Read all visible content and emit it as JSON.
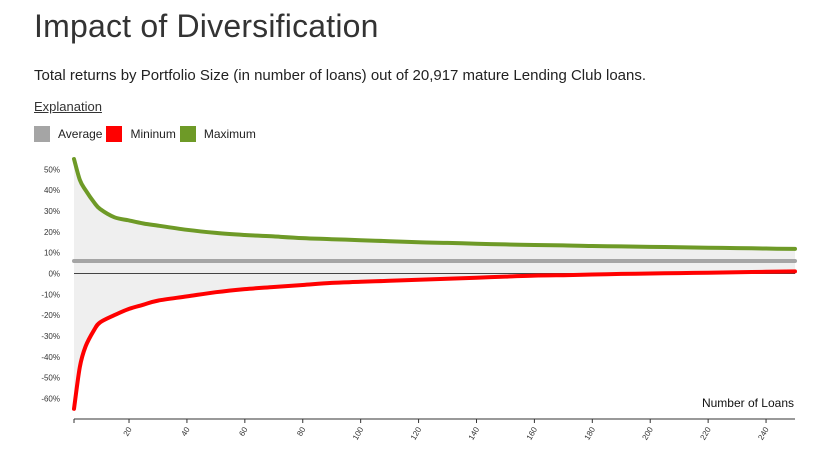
{
  "header": {
    "title": "Impact of Diversification",
    "subtitle": "Total returns by Portfolio Size (in number of loans) out of 20,917 mature Lending Club loans.",
    "explanation_link": "Explanation"
  },
  "legend": [
    {
      "label": "Average",
      "color": "#a5a5a5"
    },
    {
      "label": "Mininum",
      "color": "#ff0000"
    },
    {
      "label": "Maximum",
      "color": "#6e9a27"
    }
  ],
  "colors": {
    "average": "#a5a5a5",
    "minimum": "#ff0000",
    "maximum": "#6e9a27",
    "band_fill": "#efefef",
    "zero_line": "#444444"
  },
  "chart_data": {
    "type": "line",
    "xlabel": "Number of Loans",
    "ylabel": "",
    "title": "",
    "xlim": [
      1,
      250
    ],
    "ylim": [
      -67,
      55
    ],
    "x_ticks": [
      20,
      40,
      60,
      80,
      100,
      120,
      140,
      160,
      180,
      200,
      220,
      240
    ],
    "x_tick_labels": [
      "20",
      "40",
      "60",
      "80",
      "100",
      "120",
      "140",
      "160",
      "180",
      "200",
      "220",
      "240"
    ],
    "y_ticks": [
      50,
      40,
      30,
      20,
      10,
      0,
      -10,
      -20,
      -30,
      -40,
      -50,
      -60
    ],
    "y_tick_labels": [
      "50%",
      "40%",
      "30%",
      "20%",
      "10%",
      "0%",
      "-10%",
      "-20%",
      "-30%",
      "-40%",
      "-50%",
      "-60%"
    ],
    "x": [
      1,
      3,
      5,
      8,
      10,
      15,
      20,
      25,
      30,
      40,
      50,
      60,
      70,
      80,
      90,
      100,
      110,
      120,
      130,
      140,
      150,
      160,
      170,
      180,
      190,
      200,
      210,
      220,
      230,
      240,
      250
    ],
    "series": [
      {
        "name": "Average",
        "values": [
          6,
          6,
          6,
          6,
          6,
          6,
          6,
          6,
          6,
          6,
          6,
          6,
          6,
          6,
          6,
          6,
          6,
          6,
          6,
          6,
          6,
          6,
          6,
          6,
          6,
          6,
          6,
          6,
          6,
          6,
          6
        ]
      },
      {
        "name": "Mininum",
        "values": [
          -65,
          -45,
          -35,
          -27,
          -23.5,
          -20,
          -17,
          -15,
          -13,
          -11,
          -9,
          -7.5,
          -6.5,
          -5.5,
          -4.5,
          -4,
          -3.5,
          -3,
          -2.5,
          -2,
          -1.5,
          -1,
          -0.8,
          -0.5,
          -0.2,
          0,
          0.2,
          0.4,
          0.6,
          0.8,
          1
        ]
      },
      {
        "name": "Maximum",
        "values": [
          55,
          45,
          40,
          34,
          31,
          27,
          25.5,
          24,
          23,
          21,
          19.5,
          18.5,
          17.8,
          17,
          16.5,
          16,
          15.5,
          15,
          14.7,
          14.3,
          14,
          13.7,
          13.5,
          13.2,
          13,
          12.8,
          12.6,
          12.4,
          12.2,
          12,
          11.8
        ]
      }
    ]
  }
}
